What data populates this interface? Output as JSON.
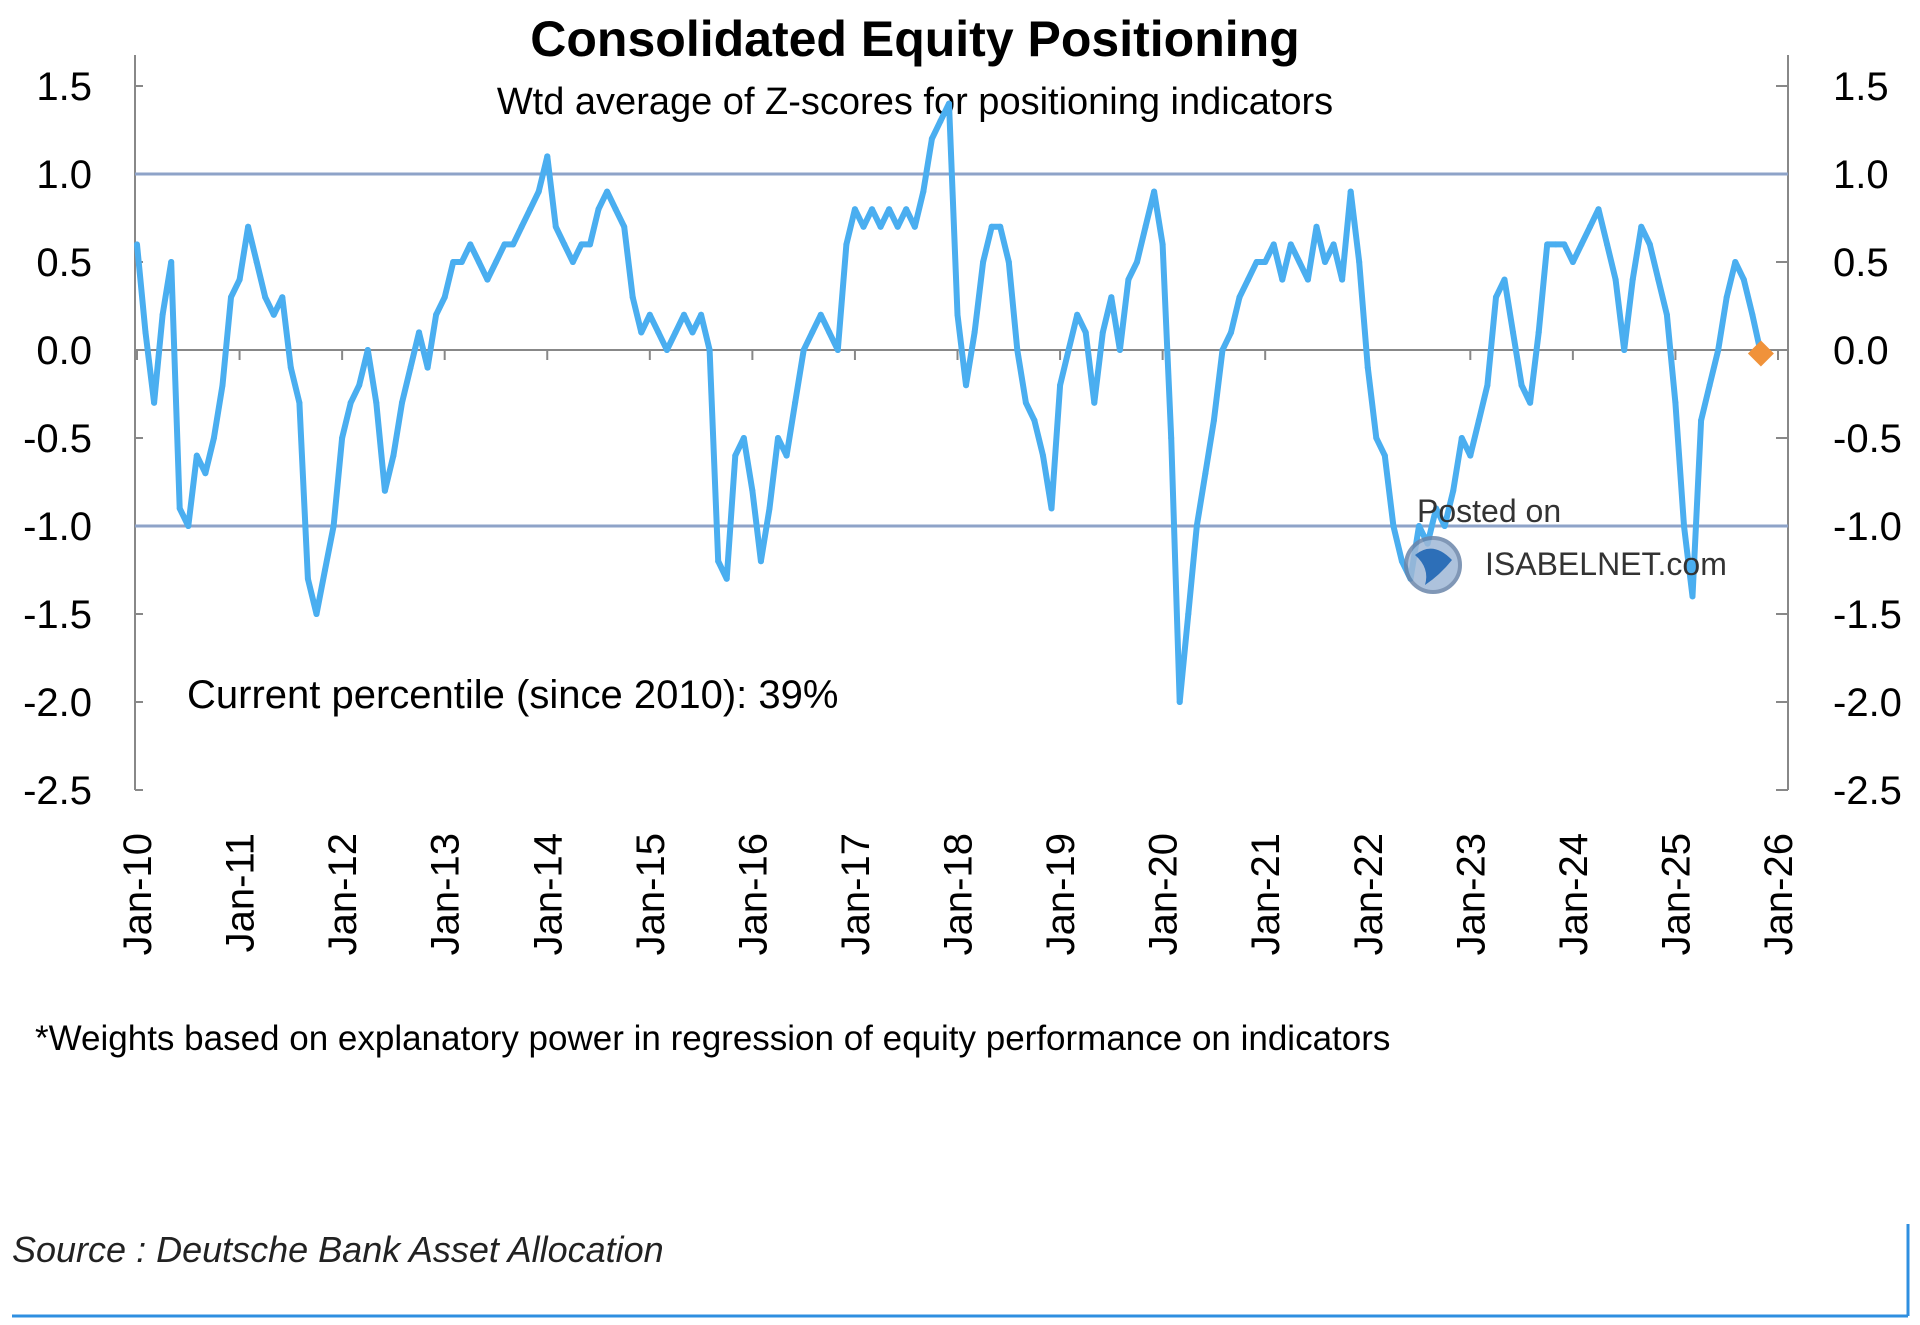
{
  "chart_data": {
    "type": "line",
    "title": "Consolidated Equity Positioning",
    "subtitle": "Wtd average of Z-scores for positioning indicators",
    "xlabel": "",
    "ylabel": "",
    "ylim": [
      -2.5,
      1.5
    ],
    "yticks": [
      "1.5",
      "1.0",
      "0.5",
      "0.0",
      "-0.5",
      "-1.0",
      "-1.5",
      "-2.0",
      "-2.5"
    ],
    "yticks_right": [
      "1.5",
      "1.0",
      "0.5",
      "0.0",
      "-0.5",
      "-1.0",
      "-1.5",
      "-2.0",
      "-2.5"
    ],
    "xticks": [
      "Jan-10",
      "Jan-11",
      "Jan-12",
      "Jan-13",
      "Jan-14",
      "Jan-15",
      "Jan-16",
      "Jan-17",
      "Jan-18",
      "Jan-19",
      "Jan-20",
      "Jan-21",
      "Jan-22",
      "Jan-23",
      "Jan-24",
      "Jan-25",
      "Jan-26"
    ],
    "xlim": [
      "2010-01",
      "2026-01"
    ],
    "reference_lines": [
      1.0,
      -1.0,
      0.0
    ],
    "grid": false,
    "legend": "none",
    "series": [
      {
        "color": "#4aaef0",
        "start": "2010-01",
        "frequency": "monthly",
        "values": [
          0.6,
          0.1,
          -0.3,
          0.2,
          0.5,
          -0.9,
          -1.0,
          -0.6,
          -0.7,
          -0.5,
          -0.2,
          0.3,
          0.4,
          0.7,
          0.5,
          0.3,
          0.2,
          0.3,
          -0.1,
          -0.3,
          -1.3,
          -1.5,
          -1.25,
          -1.0,
          -0.5,
          -0.3,
          -0.2,
          0.0,
          -0.3,
          -0.8,
          -0.6,
          -0.3,
          -0.1,
          0.1,
          -0.1,
          0.2,
          0.3,
          0.5,
          0.5,
          0.6,
          0.5,
          0.4,
          0.5,
          0.6,
          0.6,
          0.7,
          0.8,
          0.9,
          1.1,
          0.7,
          0.6,
          0.5,
          0.6,
          0.6,
          0.8,
          0.9,
          0.8,
          0.7,
          0.3,
          0.1,
          0.2,
          0.1,
          0.0,
          0.1,
          0.2,
          0.1,
          0.2,
          0.0,
          -1.2,
          -1.3,
          -0.6,
          -0.5,
          -0.8,
          -1.2,
          -0.9,
          -0.5,
          -0.6,
          -0.3,
          0.0,
          0.1,
          0.2,
          0.1,
          0.0,
          0.6,
          0.8,
          0.7,
          0.8,
          0.7,
          0.8,
          0.7,
          0.8,
          0.7,
          0.9,
          1.2,
          1.3,
          1.4,
          0.2,
          -0.2,
          0.1,
          0.5,
          0.7,
          0.7,
          0.5,
          0.0,
          -0.3,
          -0.4,
          -0.6,
          -0.9,
          -0.2,
          0.0,
          0.2,
          0.1,
          -0.3,
          0.1,
          0.3,
          0.0,
          0.4,
          0.5,
          0.7,
          0.9,
          0.6,
          -0.5,
          -2.0,
          -1.5,
          -1.0,
          -0.7,
          -0.4,
          0.0,
          0.1,
          0.3,
          0.4,
          0.5,
          0.5,
          0.6,
          0.4,
          0.6,
          0.5,
          0.4,
          0.7,
          0.5,
          0.6,
          0.4,
          0.9,
          0.5,
          -0.1,
          -0.5,
          -0.6,
          -1.0,
          -1.2,
          -1.3,
          -1.0,
          -1.1,
          -0.9,
          -1.0,
          -0.8,
          -0.5,
          -0.6,
          -0.4,
          -0.2,
          0.3,
          0.4,
          0.1,
          -0.2,
          -0.3,
          0.1,
          0.6,
          0.6,
          0.6,
          0.5,
          0.6,
          0.7,
          0.8,
          0.6,
          0.4,
          0.0,
          0.4,
          0.7,
          0.6,
          0.4,
          0.2,
          -0.3,
          -1.0,
          -1.4,
          -0.4,
          -0.2,
          0.0,
          0.3,
          0.5,
          0.4,
          0.2,
          -0.02
        ]
      }
    ],
    "latest_point": {
      "date": "2025-11",
      "value": -0.02,
      "color": "#f0923a"
    },
    "annotations": [
      "Current percentile (since 2010): 39%"
    ],
    "colors": {
      "series": "#4aaef0",
      "reference_lines": "#8ea3c8",
      "axis": "#888888",
      "latest_marker": "#f0923a",
      "frame": "#2f8fe0"
    }
  },
  "watermark": {
    "line1": "Posted on",
    "line2": "ISABELNET.com"
  },
  "footnote": "*Weights based on explanatory power in regression of equity performance on indicators",
  "source": "Source : Deutsche Bank Asset Allocation"
}
